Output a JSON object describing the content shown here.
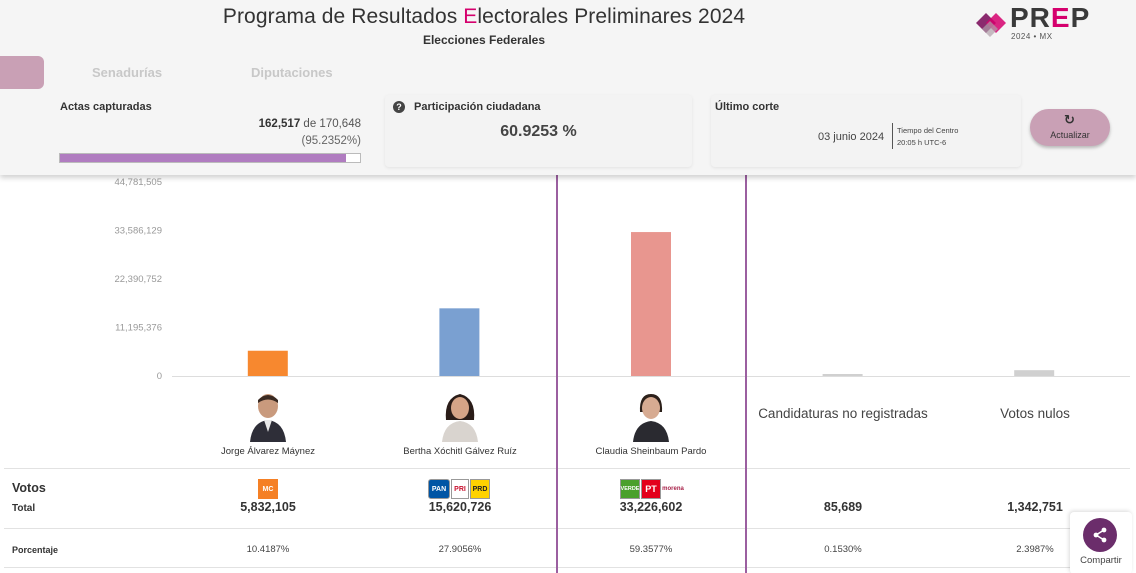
{
  "header": {
    "title_pre": "Programa de Resultados ",
    "title_accent": "E",
    "title_post": "lectorales Preliminares 2024",
    "subtitle": "Elecciones Federales",
    "logo_text_a": "PR",
    "logo_text_e": "E",
    "logo_text_b": "P",
    "logo_sub": "2024 • MX"
  },
  "tabs": [
    "Senadurías",
    "Diputaciones"
  ],
  "actas": {
    "label": "Actas capturadas",
    "captured": "162,517",
    "of": "de",
    "total": "170,648",
    "percent_text": "(95.2352%)",
    "progress_fraction": 0.952352
  },
  "participacion": {
    "label": "Participación ciudadana",
    "value": "60.9253 %"
  },
  "corte": {
    "label": "Último corte",
    "date": "03 junio 2024",
    "tz_line1": "Tiempo del Centro",
    "tz_line2": "20:05 h UTC-6"
  },
  "refresh": {
    "label": "Actualizar"
  },
  "chart_data": {
    "type": "bar",
    "categories": [
      "Jorge Álvarez Máynez",
      "Bertha Xóchitl Gálvez Ruíz",
      "Claudia Sheinbaum Pardo",
      "Candidaturas no registradas",
      "Votos nulos"
    ],
    "values": [
      5832105,
      15620726,
      33226602,
      85689,
      1342751
    ],
    "colors": [
      "#f7882f",
      "#7aa0d1",
      "#e8968f",
      "#d0d0d0",
      "#d0d0d0"
    ],
    "yticks": [
      "44,781,505",
      "33,586,129",
      "22,390,752",
      "11,195,376",
      "0"
    ],
    "ylim": [
      0,
      44781505
    ],
    "grid": false
  },
  "candidates": [
    {
      "name": "Jorge Álvarez Máynez"
    },
    {
      "name": "Bertha Xóchitl Gálvez Ruíz"
    },
    {
      "name": "Claudia Sheinbaum Pardo"
    }
  ],
  "extra_columns": [
    "Candidaturas no registradas",
    "Votos nulos"
  ],
  "table": {
    "votos_label": "Votos",
    "total_label": "Total",
    "pct_label": "Porcentaje",
    "totals": [
      "5,832,105",
      "15,620,726",
      "33,226,602",
      "85,689",
      "1,342,751"
    ],
    "percents": [
      "10.4187%",
      "27.9056%",
      "59.3577%",
      "0.1530%",
      "2.3987%"
    ]
  },
  "party_logos": {
    "mc": "MC",
    "pan": "PAN",
    "pri": "PRI",
    "prd": "PRD",
    "verde": "VERDE",
    "pt": "PT",
    "morena": "morena"
  },
  "share": {
    "label": "Compartir"
  }
}
